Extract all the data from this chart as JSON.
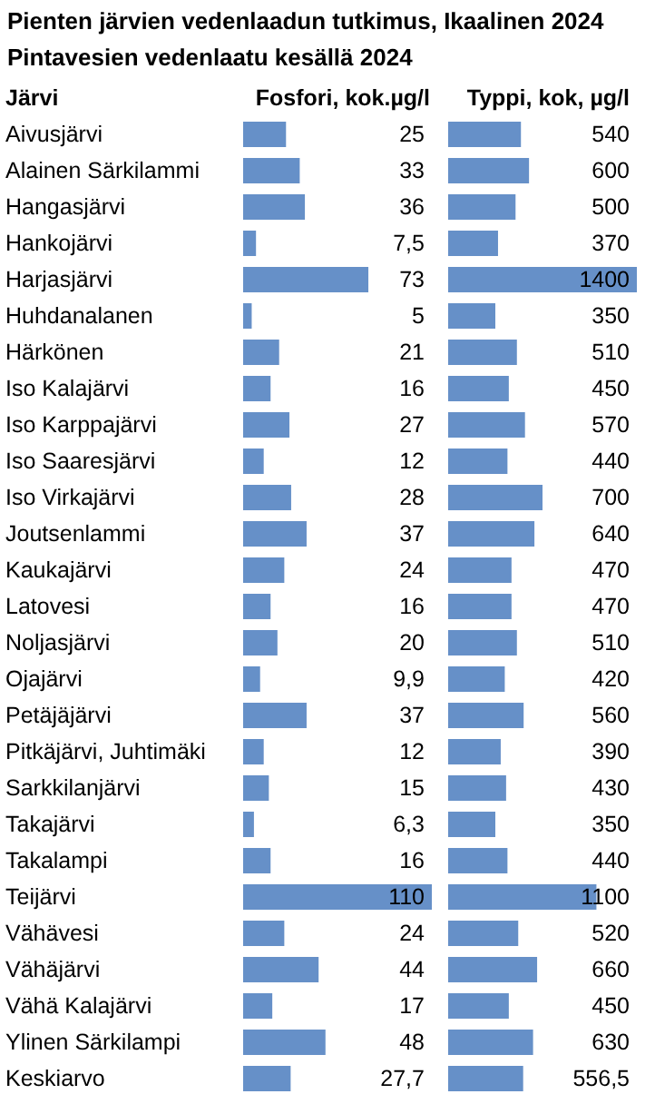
{
  "chart_data": [
    {
      "type": "bar",
      "orientation": "horizontal",
      "title": "Pienten järvien vedenlaadun tutkimus, Ikaalinen 2024",
      "subtitle": "Pintavesien vedenlaatu kesällä 2024",
      "ylabel": "Järvi",
      "xlabel": "Fosfori, kok.µg/l",
      "tick_labels": "y",
      "color": "#6690c8",
      "categories": [
        "Aivusjärvi",
        "Alainen Särkilammi",
        "Hangasjärvi",
        "Hankojärvi",
        "Harjasjärvi",
        "Huhdanalanen",
        "Härkönen",
        "Iso Kalajärvi",
        "Iso  Karppajärvi",
        "Iso Saaresjärvi",
        "Iso Virkajärvi",
        "Joutsenlammi",
        "Kaukajärvi",
        "Latovesi",
        "Noljasjärvi",
        "Ojajärvi",
        "Petäjäjärvi",
        "Pitkäjärvi, Juhtimäki",
        "Sarkkilanjärvi",
        "Takajärvi",
        "Takalampi",
        "Teijärvi",
        "Vähävesi",
        "Vähäjärvi",
        "Vähä Kalajärvi",
        "Ylinen Särkilampi",
        "Keskiarvo"
      ],
      "values": [
        25,
        33,
        36,
        7.5,
        73,
        5,
        21,
        16,
        27,
        12,
        28,
        37,
        24,
        16,
        20,
        9.9,
        37,
        12,
        15,
        6.3,
        16,
        110,
        24,
        44,
        17,
        48,
        27.7
      ],
      "value_labels": [
        "25",
        "33",
        "36",
        "7,5",
        "73",
        "5",
        "21",
        "16",
        "27",
        "12",
        "28",
        "37",
        "24",
        "16",
        "20",
        "9,9",
        "37",
        "12",
        "15",
        "6,3",
        "16",
        "110",
        "24",
        "44",
        "17",
        "48",
        "27,7"
      ]
    },
    {
      "type": "bar",
      "orientation": "horizontal",
      "xlabel": "Typpi, kok, µg/l",
      "tick_labels": false,
      "color": "#6690c8",
      "categories": [
        null,
        null,
        null,
        null,
        null,
        null,
        null,
        null,
        null,
        null,
        null,
        null,
        null,
        null,
        null,
        null,
        null,
        null,
        null,
        null,
        null,
        null,
        null,
        null,
        null,
        null,
        null
      ],
      "values": [
        540,
        600,
        500,
        370,
        1400,
        350,
        510,
        450,
        570,
        440,
        700,
        640,
        470,
        470,
        510,
        420,
        560,
        390,
        430,
        350,
        440,
        1100,
        520,
        660,
        450,
        630,
        556.5
      ],
      "value_labels": [
        "540",
        "600",
        "500",
        "370",
        "1400",
        "350",
        "510",
        "450",
        "570",
        "440",
        "700",
        "640",
        "470",
        "470",
        "510",
        "420",
        "560",
        "390",
        "430",
        "350",
        "440",
        "1100",
        "520",
        "660",
        "450",
        "630",
        "556,5"
      ]
    }
  ]
}
